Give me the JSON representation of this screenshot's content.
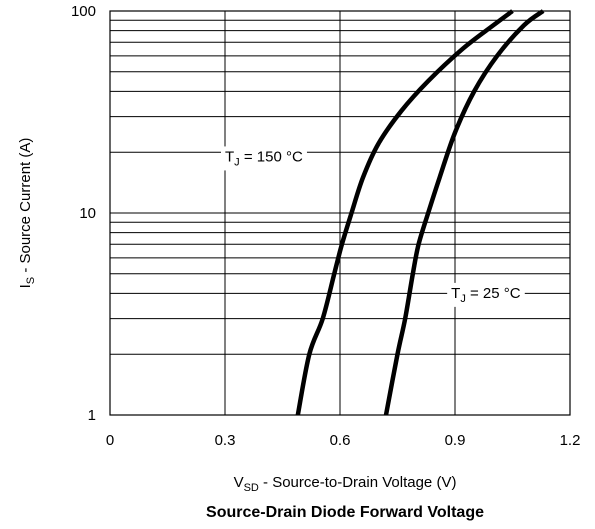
{
  "chart_data": {
    "type": "line",
    "title": "Source-Drain Diode Forward Voltage",
    "xlabel": {
      "main": "V",
      "sub": "SD",
      "rest": " - Source-to-Drain Voltage (V)"
    },
    "ylabel": {
      "main": "I",
      "sub": "S",
      "rest": " - Source Current (A)"
    },
    "xlim": [
      0,
      1.2
    ],
    "ylim": [
      1,
      100
    ],
    "yscale": "log",
    "x_ticks": [
      "0",
      "0.3",
      "0.6",
      "0.9",
      "1.2"
    ],
    "x_tick_values": [
      0,
      0.3,
      0.6,
      0.9,
      1.2
    ],
    "y_ticks": [
      "1",
      "10",
      "100"
    ],
    "y_tick_values": [
      1,
      10,
      100
    ],
    "grid": true,
    "series": [
      {
        "label": {
          "main": "T",
          "sub": "J",
          "rest": " = 150 °C"
        },
        "label_at": [
          0.3,
          18
        ],
        "x": [
          0.49,
          0.52,
          0.555,
          0.585,
          0.605,
          0.63,
          0.66,
          0.7,
          0.76,
          0.83,
          0.92,
          1.0,
          1.05
        ],
        "y": [
          1,
          2,
          3,
          5,
          7,
          10,
          15,
          22,
          32,
          45,
          65,
          85,
          100
        ]
      },
      {
        "label": {
          "main": "T",
          "sub": "J",
          "rest": " = 25 °C"
        },
        "label_at": [
          0.89,
          3.8
        ],
        "x": [
          0.72,
          0.75,
          0.77,
          0.79,
          0.805,
          0.83,
          0.86,
          0.9,
          0.95,
          1.01,
          1.08,
          1.13
        ],
        "y": [
          1,
          2,
          3,
          5,
          7,
          10,
          15,
          25,
          40,
          60,
          85,
          100
        ]
      }
    ]
  }
}
